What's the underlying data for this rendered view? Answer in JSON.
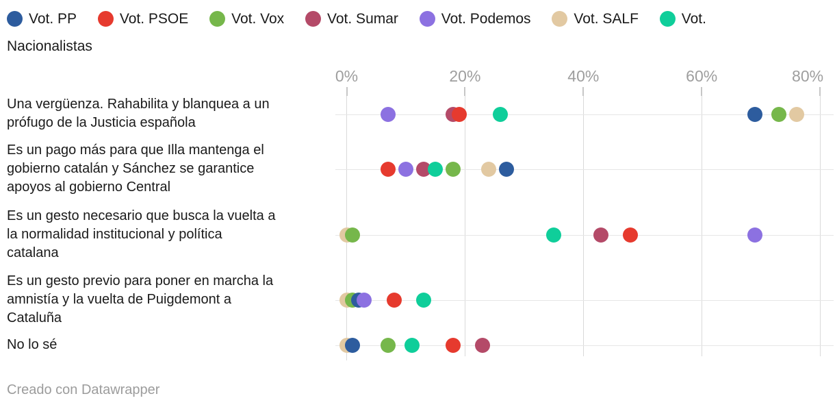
{
  "chart_data": {
    "type": "scatter",
    "variant": "horizontal-dot-plot",
    "unit": "%",
    "categories": [
      "Una vergüenza. Rahabilita y blanquea a un\nprófugo de la Justicia española",
      "Es un pago más para que Illa mantenga el\ngobierno catalán y Sánchez se garantice\napoyos al gobierno Central",
      "Es un gesto necesario que busca la vuelta a\nla normalidad institucional y política\ncatalana",
      "Es un gesto previo para poner en marcha la\namnistía y la vuelta de Puigdemont a\nCataluña",
      "No lo sé"
    ],
    "series": [
      {
        "name": "Vot. PP",
        "color": "#2d5c9e",
        "values": [
          69,
          27,
          null,
          2,
          1
        ]
      },
      {
        "name": "Vot. PSOE",
        "color": "#e63a2e",
        "values": [
          19,
          7,
          48,
          8,
          18
        ]
      },
      {
        "name": "Vot. Vox",
        "color": "#76b74b",
        "values": [
          73,
          18,
          1,
          1,
          7
        ]
      },
      {
        "name": "Vot. Sumar",
        "color": "#b44a68",
        "values": [
          18,
          13,
          43,
          null,
          23
        ]
      },
      {
        "name": "Vot. Podemos",
        "color": "#8c71e1",
        "values": [
          7,
          10,
          69,
          3,
          null
        ]
      },
      {
        "name": "Vot. SALF",
        "color": "#e2c9a2",
        "values": [
          76,
          24,
          0,
          0,
          0
        ]
      },
      {
        "name": "Vot. Nacionalistas",
        "color": "#0fce9a",
        "values": [
          26,
          15,
          35,
          13,
          11
        ]
      }
    ],
    "x_axis": {
      "tick_labels": [
        "0%",
        "20%",
        "40%",
        "60%",
        "80%"
      ],
      "min": 0,
      "max": 80,
      "grid": true
    },
    "legend_position": "top"
  },
  "footer": {
    "attribution": "Creado con Datawrapper"
  }
}
